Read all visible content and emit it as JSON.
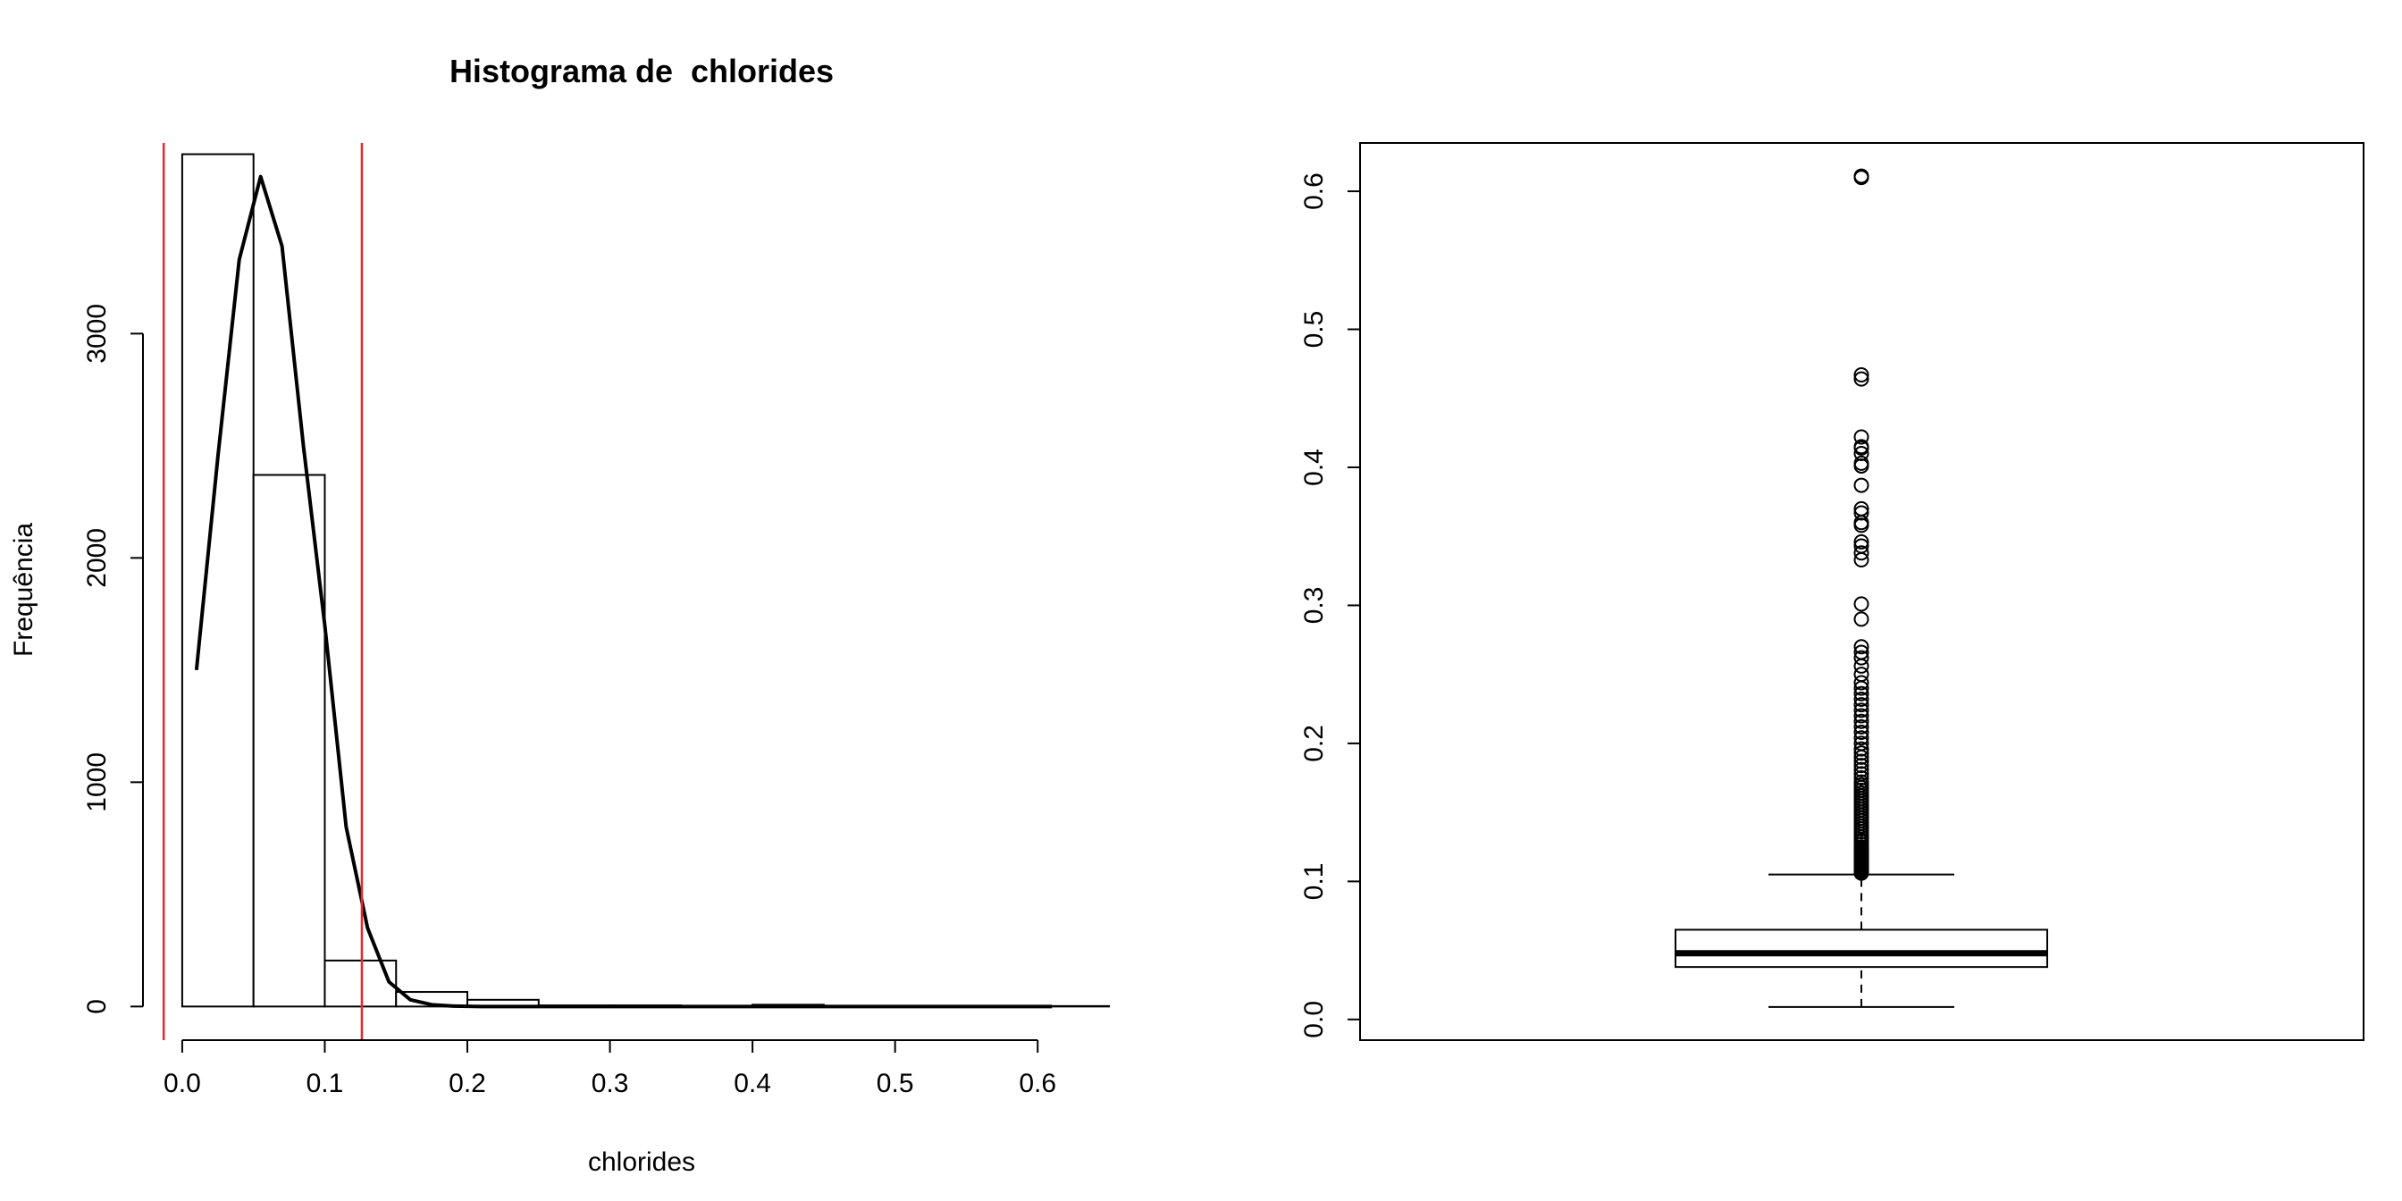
{
  "chart_data": [
    {
      "type": "histogram",
      "title": "Histograma de  chlorides",
      "xlabel": "chlorides",
      "ylabel": "Frequência",
      "xlim": [
        -0.02,
        0.65
      ],
      "ylim": [
        -150,
        3850
      ],
      "x_ticks": [
        0.0,
        0.1,
        0.2,
        0.3,
        0.4,
        0.5,
        0.6
      ],
      "x_tick_labels": [
        "0.0",
        "0.1",
        "0.2",
        "0.3",
        "0.4",
        "0.5",
        "0.6"
      ],
      "y_ticks": [
        0,
        1000,
        2000,
        3000
      ],
      "y_tick_labels": [
        "0",
        "1000",
        "2000",
        "3000"
      ],
      "bins": [
        {
          "start": 0.0,
          "end": 0.05,
          "count": 3800
        },
        {
          "start": 0.05,
          "end": 0.1,
          "count": 2370
        },
        {
          "start": 0.1,
          "end": 0.15,
          "count": 205
        },
        {
          "start": 0.15,
          "end": 0.2,
          "count": 65
        },
        {
          "start": 0.2,
          "end": 0.25,
          "count": 30
        },
        {
          "start": 0.25,
          "end": 0.3,
          "count": 5
        },
        {
          "start": 0.3,
          "end": 0.35,
          "count": 5
        },
        {
          "start": 0.35,
          "end": 0.4,
          "count": 3
        },
        {
          "start": 0.4,
          "end": 0.45,
          "count": 8
        },
        {
          "start": 0.45,
          "end": 0.5,
          "count": 1
        },
        {
          "start": 0.5,
          "end": 0.55,
          "count": 0
        },
        {
          "start": 0.55,
          "end": 0.6,
          "count": 0
        },
        {
          "start": 0.6,
          "end": 0.65,
          "count": 2
        }
      ],
      "density_curve": {
        "x": [
          0.01,
          0.025,
          0.04,
          0.055,
          0.07,
          0.085,
          0.1,
          0.115,
          0.13,
          0.145,
          0.16,
          0.175,
          0.19,
          0.21,
          0.25,
          0.3,
          0.4,
          0.5,
          0.61
        ],
        "y": [
          1500,
          2450,
          3330,
          3700,
          3390,
          2500,
          1700,
          800,
          350,
          110,
          30,
          8,
          2,
          0,
          0,
          0,
          0,
          0,
          0
        ]
      },
      "vertical_lines": [
        {
          "x": -0.013,
          "color": "#e8262b"
        },
        {
          "x": 0.126,
          "color": "#e8262b"
        }
      ],
      "bar_fill": "#ffffff",
      "line_color": "#000000",
      "grid": false
    },
    {
      "type": "boxplot",
      "ylim": [
        -0.015,
        0.635
      ],
      "y_ticks": [
        0.0,
        0.1,
        0.2,
        0.3,
        0.4,
        0.5,
        0.6
      ],
      "y_tick_labels": [
        "0.0",
        "0.1",
        "0.2",
        "0.3",
        "0.4",
        "0.5",
        "0.6"
      ],
      "whisker_low": 0.009,
      "q1": 0.038,
      "median": 0.048,
      "q3": 0.065,
      "whisker_high": 0.105,
      "outliers": [
        0.106,
        0.107,
        0.108,
        0.109,
        0.11,
        0.111,
        0.112,
        0.113,
        0.114,
        0.115,
        0.116,
        0.117,
        0.118,
        0.119,
        0.12,
        0.121,
        0.122,
        0.123,
        0.124,
        0.125,
        0.127,
        0.129,
        0.13,
        0.132,
        0.134,
        0.136,
        0.138,
        0.14,
        0.142,
        0.144,
        0.146,
        0.148,
        0.15,
        0.152,
        0.154,
        0.156,
        0.158,
        0.16,
        0.162,
        0.164,
        0.166,
        0.168,
        0.17,
        0.172,
        0.175,
        0.178,
        0.181,
        0.184,
        0.187,
        0.19,
        0.193,
        0.196,
        0.2,
        0.204,
        0.208,
        0.212,
        0.216,
        0.22,
        0.224,
        0.228,
        0.232,
        0.236,
        0.24,
        0.244,
        0.25,
        0.256,
        0.262,
        0.266,
        0.27,
        0.29,
        0.301,
        0.333,
        0.338,
        0.343,
        0.346,
        0.358,
        0.36,
        0.367,
        0.37,
        0.387,
        0.401,
        0.403,
        0.41,
        0.414,
        0.415,
        0.422,
        0.464,
        0.467,
        0.61,
        0.611
      ],
      "grid": false
    }
  ]
}
